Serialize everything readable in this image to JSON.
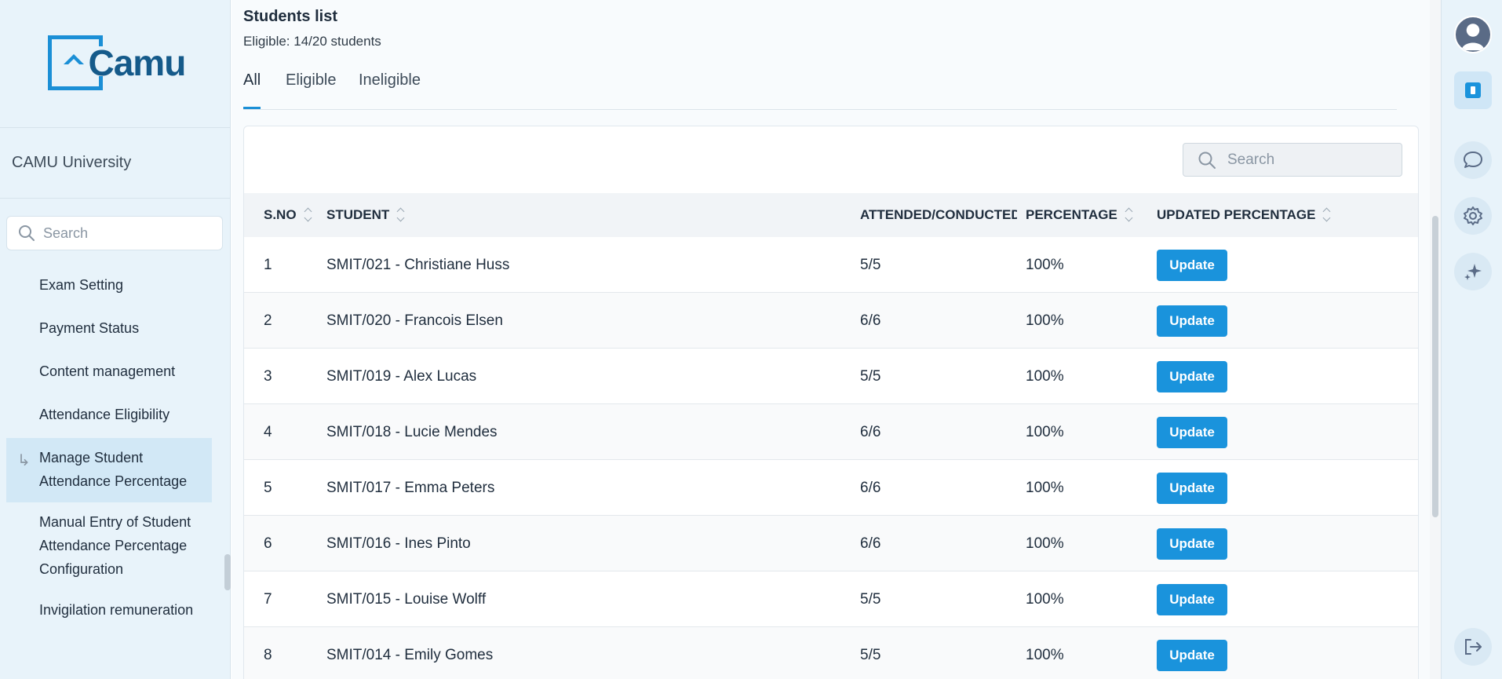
{
  "sidebar": {
    "logo_text": "Camu",
    "university": "CAMU University",
    "search_placeholder": "Search",
    "items": [
      {
        "label": "Exam Setting"
      },
      {
        "label": "Payment Status"
      },
      {
        "label": "Content management"
      },
      {
        "label": "Attendance Eligibility"
      },
      {
        "label": "Manage Student Attendance Percentage",
        "active": true
      },
      {
        "label": "Manual Entry of Student Attendance Percentage Configuration"
      },
      {
        "label": "Invigilation remuneration"
      }
    ]
  },
  "main": {
    "title": "Students list",
    "subtitle": "Eligible: 14/20 students",
    "tabs": [
      {
        "label": "All",
        "active": true
      },
      {
        "label": "Eligible"
      },
      {
        "label": "Ineligible"
      }
    ],
    "search_placeholder": "Search",
    "columns": [
      "S.NO",
      "STUDENT",
      "ATTENDED/CONDUCTED",
      "PERCENTAGE",
      "UPDATED PERCENTAGE"
    ],
    "rows": [
      {
        "sno": "1",
        "student": "SMIT/021 - Christiane Huss",
        "attended": "5/5",
        "percentage": "100%",
        "action": "Update"
      },
      {
        "sno": "2",
        "student": "SMIT/020 - Francois Elsen",
        "attended": "6/6",
        "percentage": "100%",
        "action": "Update"
      },
      {
        "sno": "3",
        "student": "SMIT/019 - Alex Lucas",
        "attended": "5/5",
        "percentage": "100%",
        "action": "Update"
      },
      {
        "sno": "4",
        "student": "SMIT/018 - Lucie Mendes",
        "attended": "6/6",
        "percentage": "100%",
        "action": "Update"
      },
      {
        "sno": "5",
        "student": "SMIT/017 - Emma Peters",
        "attended": "6/6",
        "percentage": "100%",
        "action": "Update"
      },
      {
        "sno": "6",
        "student": "SMIT/016 - Ines Pinto",
        "attended": "6/6",
        "percentage": "100%",
        "action": "Update"
      },
      {
        "sno": "7",
        "student": "SMIT/015 - Louise Wolff",
        "attended": "5/5",
        "percentage": "100%",
        "action": "Update"
      },
      {
        "sno": "8",
        "student": "SMIT/014 - Emily Gomes",
        "attended": "5/5",
        "percentage": "100%",
        "action": "Update"
      }
    ]
  },
  "rail": {
    "icons": [
      "user-avatar-icon",
      "book-icon",
      "chat-icon",
      "gear-icon",
      "sparkle-icon",
      "logout-icon"
    ]
  },
  "colors": {
    "accent": "#1a93dc",
    "brand": "#155a8a",
    "sidebar_bg": "#e8f3fa"
  }
}
